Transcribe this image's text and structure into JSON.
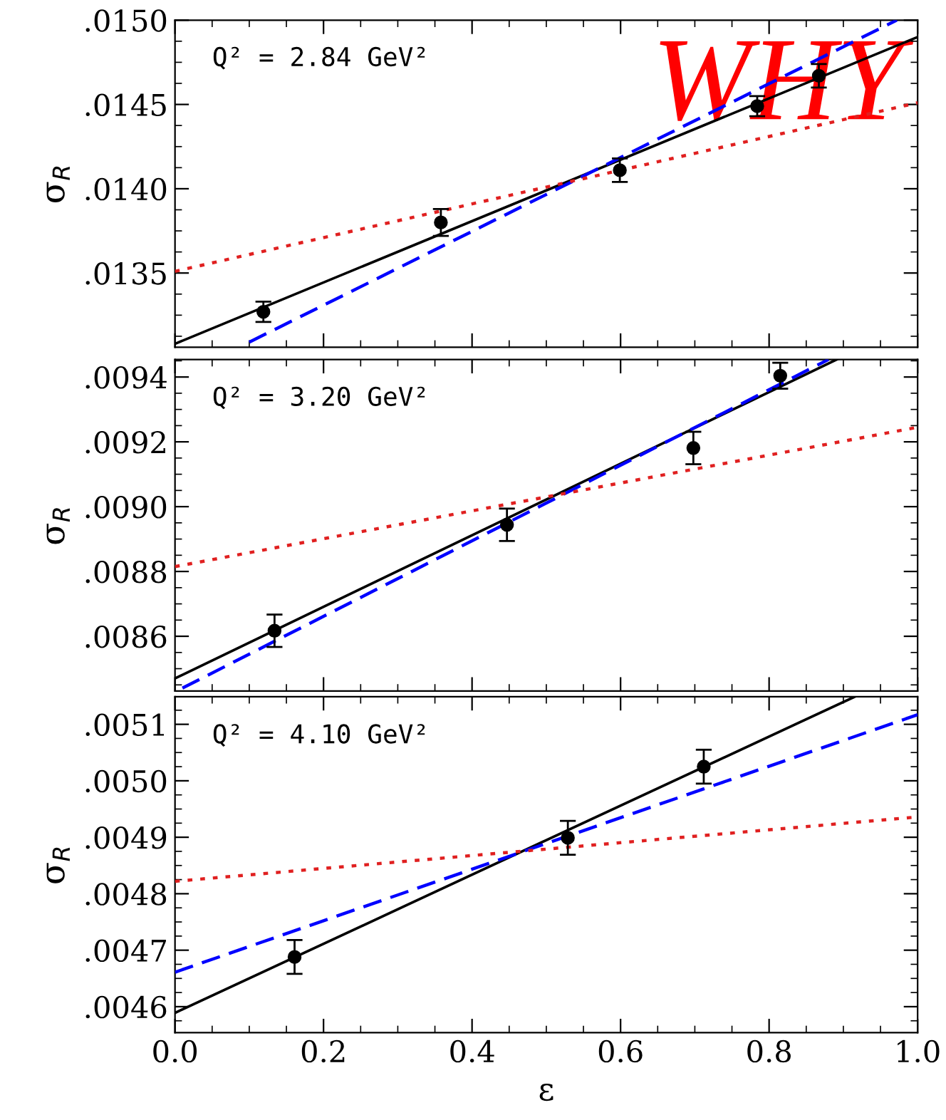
{
  "chart_data": [
    {
      "type": "scatter",
      "ylabel": "σ$_{R}$",
      "xlim": [
        0.0,
        1.0
      ],
      "ylim": [
        0.01306,
        0.015
      ],
      "xticks": [
        0.0,
        0.2,
        0.4,
        0.6,
        0.8,
        1.0
      ],
      "yticks": [
        {
          "value": 0.0135,
          "label": ".0135"
        },
        {
          "value": 0.014,
          "label": ".0140"
        },
        {
          "value": 0.0145,
          "label": ".0145"
        },
        {
          "value": 0.015,
          "label": ".0150"
        }
      ],
      "tick_labels": "y",
      "grid": false,
      "legend": false,
      "annotations": [
        "Q² = 2.84 GeV²",
        "WHY"
      ],
      "series": [
        {
          "color": "#000000",
          "marker": "circle",
          "x": [
            0.119,
            0.358,
            0.599,
            0.784,
            0.867
          ],
          "values": [
            0.01327,
            0.0138,
            0.01411,
            0.01449,
            0.01467
          ],
          "errors": [
            6e-05,
            8e-05,
            7e-05,
            6e-05,
            7e-05
          ]
        },
        {
          "type": "line",
          "color": "#000000",
          "line_style": "solid",
          "x": [
            0.0,
            1.0
          ],
          "values": [
            0.01308,
            0.0149
          ]
        },
        {
          "type": "line",
          "color": "#0000ff",
          "line_style": "dashed",
          "x": [
            0.1,
            0.972
          ],
          "values": [
            0.01309,
            0.015
          ]
        },
        {
          "type": "line",
          "color": "#e02020",
          "line_style": "dotted",
          "x": [
            0.0,
            1.0
          ],
          "values": [
            0.01351,
            0.01451
          ]
        }
      ]
    },
    {
      "type": "scatter",
      "ylabel": "σ$_{R}$",
      "xlim": [
        0.0,
        1.0
      ],
      "ylim": [
        0.008431,
        0.009454
      ],
      "xticks": [
        0.0,
        0.2,
        0.4,
        0.6,
        0.8,
        1.0
      ],
      "yticks": [
        {
          "value": 0.0086,
          "label": ".0086"
        },
        {
          "value": 0.0088,
          "label": ".0088"
        },
        {
          "value": 0.009,
          "label": ".0090"
        },
        {
          "value": 0.0092,
          "label": ".0092"
        },
        {
          "value": 0.0094,
          "label": ".0094"
        }
      ],
      "tick_labels": "y",
      "grid": false,
      "legend": false,
      "annotations": [
        "Q² = 3.20 GeV²"
      ],
      "series": [
        {
          "color": "#000000",
          "marker": "circle",
          "x": [
            0.134,
            0.447,
            0.698,
            0.815
          ],
          "values": [
            0.008617,
            0.008944,
            0.009181,
            0.009404
          ],
          "errors": [
            5e-05,
            5e-05,
            5e-05,
            4e-05
          ]
        },
        {
          "type": "line",
          "color": "#000000",
          "line_style": "solid",
          "x": [
            0.0,
            0.891
          ],
          "values": [
            0.00847,
            0.009454
          ]
        },
        {
          "type": "line",
          "color": "#0000ff",
          "line_style": "dashed",
          "x": [
            0.01,
            0.88
          ],
          "values": [
            0.00844,
            0.009454
          ]
        },
        {
          "type": "line",
          "color": "#e02020",
          "line_style": "dotted",
          "x": [
            0.0,
            1.0
          ],
          "values": [
            0.008815,
            0.009245
          ]
        }
      ]
    },
    {
      "type": "scatter",
      "xlabel": "ε",
      "ylabel": "σ$_{R}$",
      "xlim": [
        0.0,
        1.0
      ],
      "ylim": [
        0.004554,
        0.005149
      ],
      "xticks": [
        {
          "value": 0.0,
          "label": "0.0"
        },
        0.2,
        0.4,
        0.6,
        0.8,
        {
          "value": 1.0,
          "label": "1.0"
        }
      ],
      "yticks": [
        {
          "value": 0.0046,
          "label": ".0046"
        },
        {
          "value": 0.0047,
          "label": ".0047"
        },
        {
          "value": 0.0048,
          "label": ".0048"
        },
        {
          "value": 0.0049,
          "label": ".0049"
        },
        {
          "value": 0.005,
          "label": ".0050"
        },
        {
          "value": 0.0051,
          "label": ".0051"
        }
      ],
      "grid": false,
      "legend": false,
      "annotations": [
        "Q² = 4.10 GeV²"
      ],
      "series": [
        {
          "color": "#000000",
          "marker": "circle",
          "x": [
            0.161,
            0.529,
            0.712
          ],
          "values": [
            0.004688,
            0.004899,
            0.005025
          ],
          "errors": [
            3e-05,
            3e-05,
            3e-05
          ]
        },
        {
          "type": "line",
          "color": "#000000",
          "line_style": "solid",
          "x": [
            0.0,
            0.9155
          ],
          "values": [
            0.004589,
            0.005149
          ]
        },
        {
          "type": "line",
          "color": "#0000ff",
          "line_style": "dashed",
          "x": [
            0.0,
            1.0
          ],
          "values": [
            0.004661,
            0.005117
          ]
        },
        {
          "type": "line",
          "color": "#e02020",
          "line_style": "dotted",
          "x": [
            0.0,
            1.0
          ],
          "values": [
            0.004822,
            0.004936
          ]
        }
      ]
    }
  ]
}
